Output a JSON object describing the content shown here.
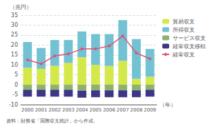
{
  "chart_data": {
    "type": "bar",
    "stacked": true,
    "categories": [
      "2000",
      "2001",
      "2002",
      "2003",
      "2004",
      "2005",
      "2006",
      "2007",
      "2008",
      "2009"
    ],
    "series": [
      {
        "name": "貿易収支",
        "type": "bar",
        "color": "#d4e84a",
        "values": [
          8.5,
          8.0,
          9.5,
          11.0,
          13.8,
          10.0,
          9.5,
          12.0,
          3.0,
          4.0
        ]
      },
      {
        "name": "所得収支",
        "type": "bar",
        "color": "#73c2d4",
        "values": [
          13.0,
          10.5,
          13.0,
          11.5,
          13.0,
          15.5,
          16.0,
          20.5,
          20.0,
          14.0
        ]
      },
      {
        "name": "サービス収支",
        "type": "bar",
        "color": "#8db26e",
        "values": [
          -2.5,
          -2.5,
          -2.5,
          -2.5,
          -3.0,
          -2.8,
          -2.8,
          -2.8,
          -2.8,
          -2.5
        ]
      },
      {
        "name": "経常収支移転",
        "type": "bar",
        "color": "#3d3585",
        "values": [
          -3.5,
          -3.5,
          -3.5,
          -3.5,
          -3.5,
          -3.5,
          -3.5,
          -3.5,
          -3.5,
          -3.5
        ]
      },
      {
        "name": "経常収支",
        "type": "line",
        "color": "#e05070",
        "marker": "diamond",
        "values": [
          12.5,
          10.5,
          14.5,
          15.5,
          18.0,
          18.0,
          19.5,
          24.5,
          16.0,
          13.0
        ]
      }
    ],
    "xlabel": "（年）",
    "ylabel": "（兆円）",
    "annotations": [
      "資料：財務省「国際収支統計」から作成。"
    ],
    "ylim": [
      -10,
      35
    ],
    "yticks": [
      -10,
      -5,
      0,
      5,
      10,
      15,
      20,
      25,
      30,
      35
    ],
    "grid": true,
    "legend": "upper right"
  }
}
